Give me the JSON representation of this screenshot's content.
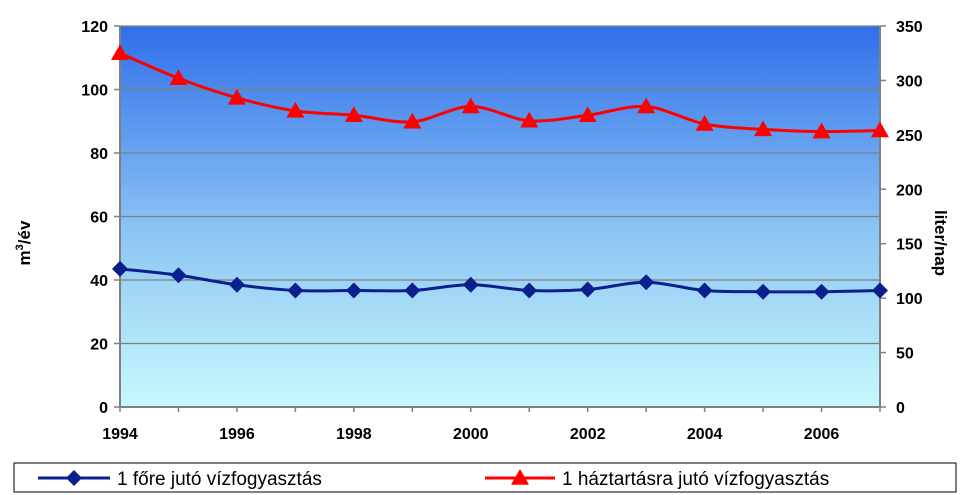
{
  "chart_data": {
    "type": "line",
    "x": [
      1994,
      1995,
      1996,
      1997,
      1998,
      1999,
      2000,
      2001,
      2002,
      2003,
      2004,
      2005,
      2006,
      2007
    ],
    "x_tick_labels": [
      "1994",
      "1996",
      "1998",
      "2000",
      "2002",
      "2004",
      "2006"
    ],
    "xlim": [
      1994,
      2007
    ],
    "y_left": {
      "label_base": "m",
      "label_sup": "3",
      "label_rest": "/év",
      "ylim": [
        0,
        120
      ],
      "ticks": [
        0,
        20,
        40,
        60,
        80,
        100,
        120
      ]
    },
    "y_right": {
      "label": "liter/nap",
      "ylim": [
        0,
        350
      ],
      "ticks": [
        0,
        50,
        100,
        150,
        200,
        250,
        300,
        350
      ]
    },
    "series": [
      {
        "name": "1 főre jutó vízfogyasztás",
        "axis": "left",
        "color": "#0d1f8c",
        "marker": "diamond",
        "values": [
          43.5,
          41.5,
          38.5,
          36.7,
          36.7,
          36.7,
          38.5,
          36.7,
          37.0,
          39.3,
          36.7,
          36.3,
          36.3,
          36.7
        ]
      },
      {
        "name": "1 háztartásra jutó vízfogyasztás",
        "axis": "right",
        "color": "#ff0000",
        "marker": "triangle",
        "values": [
          325,
          302,
          284,
          272,
          268,
          262,
          276,
          263,
          268,
          276,
          260,
          255,
          253,
          254
        ]
      }
    ],
    "grid": true,
    "legend_position": "bottom",
    "background_gradient": [
      "#2f6fea",
      "#c8f9fc"
    ]
  }
}
